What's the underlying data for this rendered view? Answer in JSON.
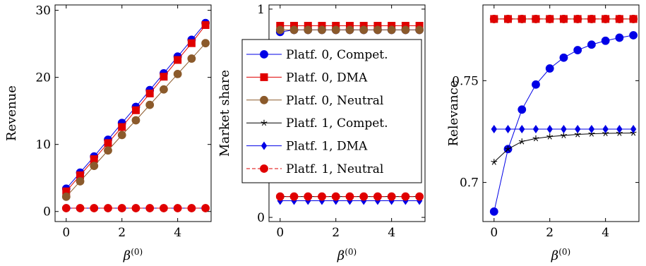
{
  "chart_data": [
    {
      "type": "line",
      "xlabel": "β",
      "xlabel_sup": "(0)",
      "ylabel": "Revenue",
      "xlim": [
        -0.4,
        5.2
      ],
      "ylim": [
        -1.5,
        30.8
      ],
      "xticks": [
        0,
        2,
        4
      ],
      "yticks": [
        0,
        10,
        20,
        30
      ],
      "xtick_labels": [
        "0",
        "2",
        "4"
      ],
      "ytick_labels": [
        "0",
        "10",
        "20",
        "30"
      ],
      "x": [
        0,
        0.5,
        1,
        1.5,
        2,
        2.5,
        3,
        3.5,
        4,
        4.5,
        5
      ],
      "series": [
        {
          "key": "p0c",
          "values": [
            3.4,
            5.8,
            8.2,
            10.7,
            13.2,
            15.6,
            18.1,
            20.6,
            23.1,
            25.6,
            28.1
          ]
        },
        {
          "key": "p0d",
          "values": [
            3.0,
            5.4,
            7.8,
            10.2,
            12.6,
            15.1,
            17.6,
            20.1,
            22.6,
            25.1,
            27.8
          ]
        },
        {
          "key": "p0n",
          "values": [
            2.2,
            4.5,
            6.8,
            9.1,
            11.4,
            13.6,
            15.9,
            18.2,
            20.5,
            22.8,
            25.1
          ]
        },
        {
          "key": "p1c",
          "values": [
            0.5,
            0.5,
            0.5,
            0.5,
            0.5,
            0.5,
            0.5,
            0.5,
            0.5,
            0.5,
            0.5
          ]
        },
        {
          "key": "p1d",
          "values": [
            0.5,
            0.5,
            0.5,
            0.5,
            0.5,
            0.5,
            0.5,
            0.5,
            0.5,
            0.5,
            0.5
          ]
        },
        {
          "key": "p1n",
          "values": [
            0.5,
            0.5,
            0.5,
            0.5,
            0.5,
            0.5,
            0.5,
            0.5,
            0.5,
            0.5,
            0.5
          ]
        }
      ]
    },
    {
      "type": "line",
      "xlabel": "β",
      "xlabel_sup": "(0)",
      "ylabel": "Market share",
      "xlim": [
        -0.4,
        5.2
      ],
      "ylim": [
        -0.02,
        1.02
      ],
      "xticks": [
        0,
        2,
        4
      ],
      "yticks": [
        0,
        1
      ],
      "xtick_labels": [
        "0",
        "2",
        "4"
      ],
      "ytick_labels": [
        "0",
        "1"
      ],
      "x": [
        0,
        0.5,
        1,
        1.5,
        2,
        2.5,
        3,
        3.5,
        4,
        4.5,
        5
      ],
      "series": [
        {
          "key": "p0c",
          "values": [
            0.89,
            0.9,
            0.9,
            0.9,
            0.9,
            0.9,
            0.9,
            0.9,
            0.9,
            0.9,
            0.9
          ]
        },
        {
          "key": "p0d",
          "values": [
            0.92,
            0.92,
            0.92,
            0.92,
            0.92,
            0.92,
            0.92,
            0.92,
            0.92,
            0.92,
            0.92
          ]
        },
        {
          "key": "p0n",
          "values": [
            0.9,
            0.9,
            0.9,
            0.9,
            0.9,
            0.9,
            0.9,
            0.9,
            0.9,
            0.9,
            0.9
          ]
        },
        {
          "key": "p1c",
          "values": [
            0.1,
            0.1,
            0.1,
            0.1,
            0.1,
            0.1,
            0.1,
            0.1,
            0.1,
            0.1,
            0.1
          ]
        },
        {
          "key": "p1d",
          "values": [
            0.08,
            0.08,
            0.08,
            0.08,
            0.08,
            0.08,
            0.08,
            0.08,
            0.08,
            0.08,
            0.08
          ]
        },
        {
          "key": "p1n",
          "values": [
            0.1,
            0.1,
            0.1,
            0.1,
            0.1,
            0.1,
            0.1,
            0.1,
            0.1,
            0.1,
            0.1
          ]
        }
      ]
    },
    {
      "type": "line",
      "xlabel": "β",
      "xlabel_sup": "(0)",
      "ylabel": "Relevance",
      "xlim": [
        -0.4,
        5.2
      ],
      "ylim": [
        0.6808,
        0.7872
      ],
      "xticks": [
        0,
        2,
        4
      ],
      "yticks": [
        0.7,
        0.75
      ],
      "xtick_labels": [
        "0",
        "2",
        "4"
      ],
      "ytick_labels": [
        "0.7",
        "0.75"
      ],
      "x": [
        0,
        0.5,
        1,
        1.5,
        2,
        2.5,
        3,
        3.5,
        4,
        4.5,
        5
      ],
      "series": [
        {
          "key": "p0c",
          "values": [
            0.6857,
            0.7164,
            0.7358,
            0.7481,
            0.756,
            0.7613,
            0.765,
            0.7677,
            0.7696,
            0.7711,
            0.7723
          ]
        },
        {
          "key": "p0d",
          "values": [
            0.7803,
            0.7803,
            0.7803,
            0.7803,
            0.7803,
            0.7803,
            0.7803,
            0.7803,
            0.7803,
            0.7803,
            0.7803
          ]
        },
        {
          "key": "p0n",
          "values": [
            0.7803,
            0.7803,
            0.7803,
            0.7803,
            0.7803,
            0.7803,
            0.7803,
            0.7803,
            0.7803,
            0.7803,
            0.7803
          ]
        },
        {
          "key": "p1c",
          "values": [
            0.71,
            0.7164,
            0.7201,
            0.7216,
            0.7225,
            0.7231,
            0.7236,
            0.7239,
            0.7241,
            0.7242,
            0.7243
          ]
        },
        {
          "key": "p1d",
          "values": [
            0.7262,
            0.7262,
            0.7262,
            0.7262,
            0.7262,
            0.7262,
            0.7262,
            0.7262,
            0.7262,
            0.7262,
            0.7262
          ]
        },
        {
          "key": "p1n",
          "values": [
            0.7803,
            0.7803,
            0.7803,
            0.7803,
            0.7803,
            0.7803,
            0.7803,
            0.7803,
            0.7803,
            0.7803,
            0.7803
          ]
        }
      ]
    }
  ],
  "legend": {
    "placement": "over middle panel",
    "entries": [
      {
        "key": "p0c",
        "label": "Platf. 0, Compet.",
        "color": "#0000e6",
        "marker": "circle",
        "dash": "solid"
      },
      {
        "key": "p0d",
        "label": "Platf. 0, DMA",
        "color": "#e00000",
        "marker": "square",
        "dash": "solid"
      },
      {
        "key": "p0n",
        "label": "Platf. 0, Neutral",
        "color": "#8b5a2b",
        "marker": "circle",
        "dash": "solid"
      },
      {
        "key": "p1c",
        "label": "Platf. 1, Compet.",
        "color": "#000000",
        "marker": "star",
        "dash": "solid"
      },
      {
        "key": "p1d",
        "label": "Platf. 1, DMA",
        "color": "#0000e6",
        "marker": "diamond",
        "dash": "solid"
      },
      {
        "key": "p1n",
        "label": "Platf. 1, Neutral",
        "color": "#e00000",
        "marker": "circle",
        "dash": "dashed"
      }
    ]
  },
  "colors": {
    "axis": "#000000",
    "background": "#ffffff"
  }
}
